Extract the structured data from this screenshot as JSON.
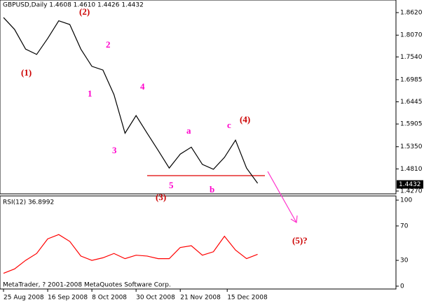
{
  "chart_data": [
    {
      "type": "line",
      "title": "GBPUSD,Daily  1.4608 1.4610 1.4426 1.4432",
      "color": "#000000",
      "x": [
        0,
        4,
        8,
        12,
        16,
        20,
        24,
        28,
        32,
        36,
        40,
        44,
        48,
        52,
        56,
        60,
        64,
        68,
        72,
        76,
        80,
        84,
        88,
        92
      ],
      "values": [
        1.85,
        1.821,
        1.773,
        1.76,
        1.799,
        1.842,
        1.833,
        1.773,
        1.731,
        1.722,
        1.662,
        1.568,
        1.611,
        1.568,
        1.526,
        1.483,
        1.517,
        1.534,
        1.492,
        1.48,
        1.509,
        1.551,
        1.483,
        1.446
      ],
      "last_price": 1.4432,
      "xlim": [
        -1.27,
        142.1
      ],
      "xticks": [
        {
          "value": 0,
          "label": "25 Aug 2008"
        },
        {
          "value": 16,
          "label": "16 Sep 2008"
        },
        {
          "value": 32,
          "label": "8 Oct 2008"
        },
        {
          "value": 48,
          "label": "30 Oct 2008"
        },
        {
          "value": 64,
          "label": "21 Nov 2008"
        },
        {
          "value": 81,
          "label": "15 Dec 2008"
        }
      ],
      "ylim": [
        1.4202,
        1.8927
      ],
      "yticks": [
        {
          "value": 1.862,
          "label": "1.8620"
        },
        {
          "value": 1.807,
          "label": "1.8070"
        },
        {
          "value": 1.754,
          "label": "1.7540"
        },
        {
          "value": 1.6985,
          "label": "1.6985"
        },
        {
          "value": 1.6445,
          "label": "1.6445"
        },
        {
          "value": 1.5905,
          "label": "1.5905"
        },
        {
          "value": 1.535,
          "label": "1.5350"
        },
        {
          "value": 1.481,
          "label": "1.4810"
        },
        {
          "value": 1.427,
          "label": "1.4270"
        }
      ],
      "annotations": [
        "(1)",
        "(2)",
        "1",
        "2",
        "3",
        "4",
        "5",
        "(3)",
        "a",
        "b",
        "c",
        "(4)",
        "(5)?"
      ],
      "footer": "MetaTrader, ? 2001-2008 MetaQuotes Software Corp."
    },
    {
      "type": "line",
      "title": "RSI(12) 36.8992",
      "color": "#ff0000",
      "x": [
        0,
        4,
        8,
        12,
        16,
        20,
        24,
        28,
        32,
        36,
        40,
        44,
        48,
        52,
        56,
        60,
        64,
        68,
        72,
        76,
        80,
        84,
        88,
        92
      ],
      "values": [
        15,
        20,
        30,
        38,
        55,
        60,
        52,
        35,
        30,
        33,
        38,
        32,
        36,
        35,
        32,
        32,
        45,
        47,
        36,
        40,
        58,
        42,
        32,
        37
      ],
      "xlim": [
        -1.27,
        142.1
      ],
      "ylim": [
        -3.3,
        104.9
      ],
      "yticks": [
        0,
        30,
        70,
        100
      ]
    }
  ]
}
